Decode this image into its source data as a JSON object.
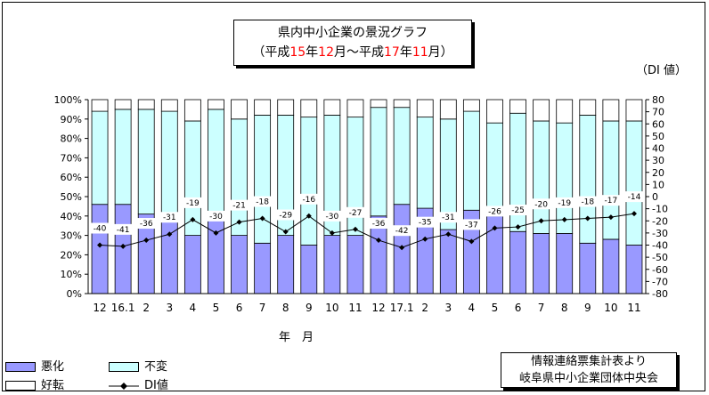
{
  "title": {
    "line1": "県内中小企業の景況グラフ",
    "line2_parts": [
      "（平成",
      "15",
      "年",
      "12",
      "月～平成",
      "17",
      "年",
      "11",
      "月）"
    ]
  },
  "di_axis_unit": "（DI 値）",
  "x_axis_label": "年　月",
  "legend": {
    "bad": "悪化",
    "same": "不変",
    "good": "好転",
    "di": "DI値"
  },
  "source": {
    "line1": "情報連絡票集計表より",
    "line2": "岐阜県中小企業団体中央会"
  },
  "colors": {
    "bad": "#9999ff",
    "same": "#ccffff",
    "good": "#ffffff",
    "line": "#000000",
    "accent": "#ff0000"
  },
  "chart_data": {
    "type": "bar",
    "stacked": true,
    "categories": [
      "12",
      "16.1",
      "2",
      "3",
      "4",
      "5",
      "6",
      "7",
      "8",
      "9",
      "10",
      "11",
      "12",
      "17.1",
      "2",
      "3",
      "4",
      "5",
      "6",
      "7",
      "8",
      "9",
      "10",
      "11"
    ],
    "series": [
      {
        "name": "悪化",
        "values": [
          46,
          46,
          41,
          40,
          30,
          40,
          30,
          26,
          30,
          25,
          30,
          30,
          40,
          46,
          44,
          33,
          43,
          40,
          32,
          31,
          31,
          26,
          28,
          25
        ]
      },
      {
        "name": "不変",
        "values": [
          48,
          49,
          54,
          54,
          59,
          55,
          60,
          66,
          62,
          66,
          62,
          61,
          56,
          50,
          47,
          57,
          51,
          48,
          61,
          58,
          57,
          66,
          61,
          64
        ]
      },
      {
        "name": "好転",
        "values": [
          6,
          5,
          5,
          6,
          11,
          5,
          10,
          8,
          8,
          9,
          8,
          9,
          4,
          4,
          9,
          10,
          6,
          12,
          7,
          11,
          12,
          8,
          11,
          11
        ]
      }
    ],
    "di_series": {
      "name": "DI値",
      "values": [
        -40,
        -41,
        -36,
        -31,
        -19,
        -30,
        -21,
        -18,
        -29,
        -16,
        -30,
        -27,
        -36,
        -42,
        -35,
        -31,
        -37,
        -26,
        -25,
        -20,
        -19,
        -18,
        -17,
        -14
      ]
    },
    "y_left": {
      "min": 0,
      "max": 100,
      "step": 10,
      "ticks": [
        "0%",
        "10%",
        "20%",
        "30%",
        "40%",
        "50%",
        "60%",
        "70%",
        "80%",
        "90%",
        "100%"
      ]
    },
    "y_right": {
      "min": -80,
      "max": 80,
      "step": 10,
      "ticks": [
        "-80",
        "-70",
        "-60",
        "-50",
        "-40",
        "-30",
        "-20",
        "-10",
        "0",
        "10",
        "20",
        "30",
        "40",
        "50",
        "60",
        "70",
        "80"
      ]
    },
    "xlabel": "年　月",
    "ylabel_right": "（DI 値）",
    "legend_position": "bottom-left"
  }
}
